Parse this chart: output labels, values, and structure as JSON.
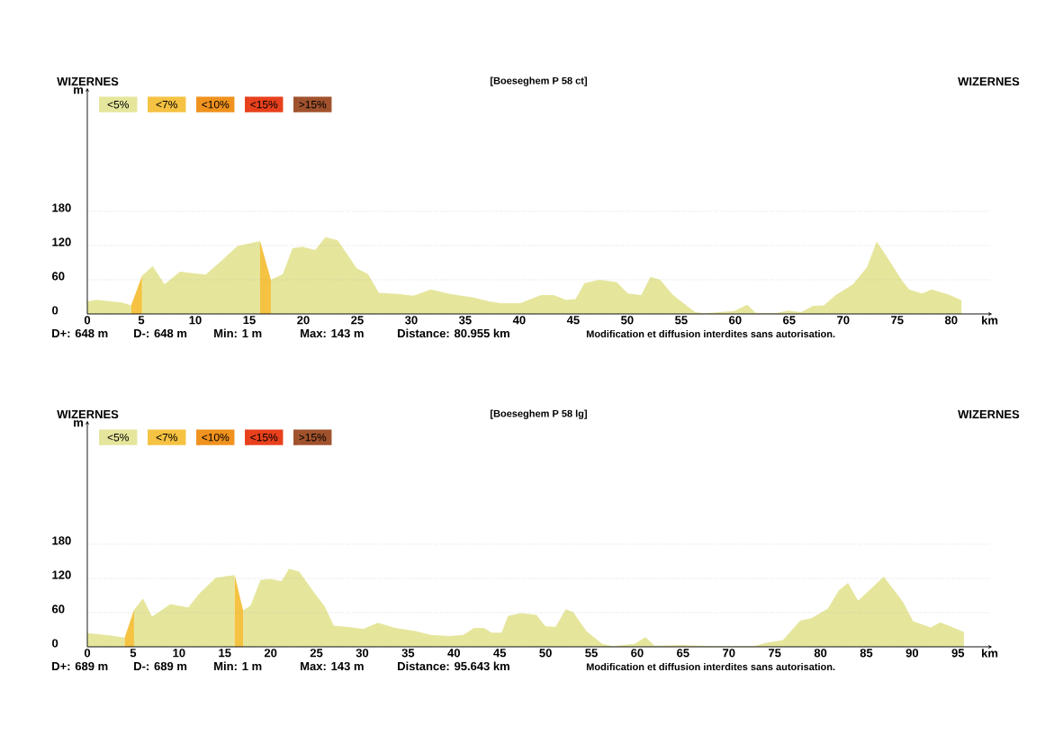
{
  "chart_data": [
    {
      "type": "area",
      "title": "[Boeseghem P 58 ct]",
      "xlabel": "km",
      "ylabel": "m",
      "annotations": [
        "WIZERNES",
        "WIZERNES",
        "D+: 648 m",
        "D-: 648 m",
        "Min: 1 m",
        "Max: 143 m",
        "Distance: 80.955 km",
        "Modification et diffusion interdites sans autorisation."
      ],
      "series": [
        {
          "name": "<5%",
          "color": "#e5e69c",
          "x": [
            0,
            0.85,
            3.2,
            4.06,
            4.5,
            5.07,
            6.05,
            7.15,
            8.58,
            10.96,
            12.45,
            13.9,
            16.0,
            16.5,
            17.0,
            18.1,
            19.0,
            19.9,
            21.1,
            22.05,
            23.2,
            24.95,
            26.0,
            27.0,
            28.8,
            30.2,
            31.8,
            33.6,
            35.7,
            37.2,
            38.3,
            40.1,
            42.0,
            43.2,
            44.3,
            45.2,
            46.05,
            47.4,
            49.0,
            50.07,
            51.3,
            52.15,
            53.05,
            54.2,
            56.3,
            57.2,
            59.9,
            61.1,
            61.9,
            63.7,
            64.9,
            66.1,
            67.2,
            68.2,
            69.3,
            70.9,
            72.2,
            73.1,
            74.2,
            75.5,
            76.1,
            77.3,
            78.2,
            79.8,
            80.955
          ],
          "values": [
            22,
            25,
            20,
            15,
            null,
            67,
            84,
            52,
            74,
            69,
            94,
            119,
            128,
            null,
            60,
            70,
            115,
            118,
            112,
            135,
            129,
            80,
            70,
            37,
            35,
            32,
            43,
            35,
            29,
            22,
            19,
            19,
            33,
            33,
            25,
            26,
            54,
            60,
            56,
            36,
            33,
            65,
            60,
            34,
            3,
            1,
            5,
            16,
            2,
            1,
            6,
            3,
            14,
            15,
            33,
            52,
            82,
            127,
            96,
            57,
            43,
            36,
            43,
            34,
            24
          ]
        },
        {
          "name": "<7%",
          "color": "#f5c242",
          "x": [
            4.06,
            5.07,
            10.0,
            16.0,
            17.0
          ],
          "values": [
            15,
            67,
            null,
            128,
            60
          ]
        },
        {
          "name": "<10%",
          "color": "#f0921e"
        },
        {
          "name": "<15%",
          "color": "#e8401c"
        },
        {
          "name": ">15%",
          "color": "#a0522d"
        }
      ],
      "xlim": [
        0,
        83.6
      ],
      "ylim": [
        0,
        393
      ],
      "xticks": [
        0,
        5,
        10,
        15,
        20,
        25,
        30,
        35,
        40,
        45,
        50,
        55,
        60,
        65,
        70,
        75,
        80
      ],
      "yticks": [
        0,
        60,
        120,
        180
      ],
      "grid": "y",
      "legend": "top left"
    },
    {
      "type": "area",
      "title": "[Boeseghem P 58 lg]",
      "xlabel": "km",
      "ylabel": "m",
      "annotations": [
        "WIZERNES",
        "WIZERNES",
        "D+: 689 m",
        "D-: 689 m",
        "Min: 1 m",
        "Max: 143 m",
        "Distance: 95.643 km",
        "Modification et diffusion interdites sans autorisation."
      ],
      "series": [
        {
          "name": "<5%",
          "color": "#e5e69c",
          "x": [
            0,
            2.4,
            4.08,
            4.6,
            5.1,
            6.08,
            7.06,
            9.06,
            11.0,
            12.2,
            14.0,
            16.08,
            16.5,
            17.0,
            17.8,
            18.9,
            19.9,
            21.2,
            22.0,
            23.1,
            24.85,
            25.9,
            26.9,
            29.0,
            30.1,
            31.7,
            33.6,
            35.7,
            37.5,
            39.6,
            41.0,
            42.2,
            43.3,
            44.1,
            45.2,
            45.9,
            47.3,
            49.0,
            50.0,
            51.1,
            52.2,
            53.0,
            54.5,
            56.2,
            57.3,
            59.7,
            60.9,
            61.9,
            65.0,
            68.5,
            72.7,
            74.1,
            75.9,
            77.8,
            79.0,
            80.8,
            82.0,
            83.0,
            84.1,
            85.7,
            86.9,
            89.0,
            90.1,
            92.0,
            93.1,
            95.643
          ],
          "values": [
            24,
            20,
            16,
            null,
            65,
            85,
            53,
            75,
            69,
            93,
            121,
            126,
            null,
            64,
            72,
            117,
            119,
            115,
            137,
            132,
            93,
            71,
            37,
            34,
            31,
            42,
            33,
            28,
            21,
            19,
            21,
            33,
            33,
            25,
            25,
            54,
            59,
            56,
            36,
            35,
            66,
            61,
            27,
            5,
            1,
            5,
            17,
            2,
            3,
            1,
            1,
            7,
            12,
            46,
            50,
            67,
            99,
            112,
            81,
            105,
            123,
            79,
            45,
            34,
            43,
            26
          ]
        },
        {
          "name": "<7%",
          "color": "#f5c242",
          "x": [
            4.08,
            5.1,
            10.0,
            16.08,
            17.0
          ],
          "values": [
            16,
            65,
            null,
            126,
            64
          ]
        },
        {
          "name": "<10%",
          "color": "#f0921e"
        },
        {
          "name": "<15%",
          "color": "#e8401c"
        },
        {
          "name": ">15%",
          "color": "#a0522d"
        }
      ],
      "xlim": [
        0,
        98.5
      ],
      "ylim": [
        0,
        393
      ],
      "xticks": [
        0,
        5,
        10,
        15,
        20,
        25,
        30,
        35,
        40,
        45,
        50,
        55,
        60,
        65,
        70,
        75,
        80,
        85,
        90,
        95
      ],
      "yticks": [
        0,
        60,
        120,
        180
      ],
      "grid": "y",
      "legend": "top left"
    }
  ]
}
